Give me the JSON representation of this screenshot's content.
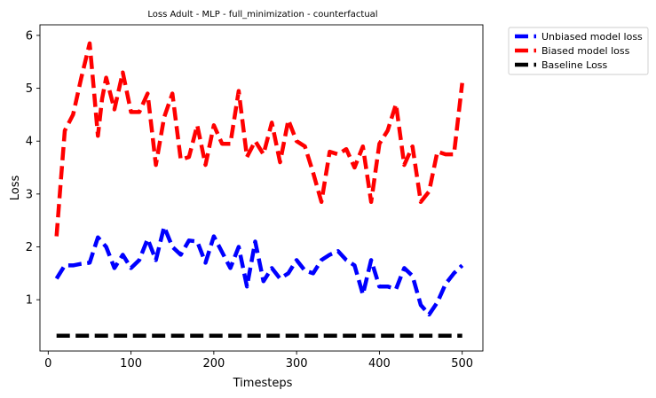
{
  "chart_data": {
    "type": "line",
    "title": "Loss Adult - MLP - full_minimization - counterfactual",
    "xlabel": "Timesteps",
    "ylabel": "Loss",
    "xlim": [
      -10,
      525
    ],
    "ylim": [
      0.03,
      6.2
    ],
    "xticks": [
      0,
      100,
      200,
      300,
      400,
      500
    ],
    "yticks": [
      1,
      2,
      3,
      4,
      5,
      6
    ],
    "grid": false,
    "legend_position": "outside-top-right",
    "series": [
      {
        "name": "Unbiased model loss",
        "color": "#0000ff",
        "x": [
          10,
          20,
          30,
          40,
          50,
          60,
          70,
          80,
          90,
          100,
          110,
          120,
          130,
          140,
          150,
          160,
          170,
          180,
          190,
          200,
          210,
          220,
          230,
          240,
          250,
          260,
          270,
          280,
          290,
          300,
          310,
          320,
          330,
          340,
          350,
          360,
          370,
          380,
          390,
          400,
          410,
          420,
          430,
          440,
          450,
          460,
          470,
          480,
          490,
          500
        ],
        "y": [
          1.4,
          1.65,
          1.65,
          1.68,
          1.7,
          2.18,
          2.0,
          1.6,
          1.85,
          1.6,
          1.75,
          2.15,
          1.75,
          2.38,
          2.0,
          1.85,
          2.12,
          2.1,
          1.7,
          2.2,
          1.9,
          1.6,
          2.0,
          1.25,
          2.1,
          1.35,
          1.6,
          1.4,
          1.5,
          1.75,
          1.55,
          1.5,
          1.75,
          1.85,
          1.92,
          1.75,
          1.65,
          1.1,
          1.75,
          1.25,
          1.25,
          1.2,
          1.6,
          1.45,
          0.9,
          0.72,
          0.95,
          1.3,
          1.5,
          1.65
        ]
      },
      {
        "name": "Biased model loss",
        "color": "#ff0000",
        "x": [
          10,
          15,
          20,
          30,
          40,
          50,
          55,
          60,
          65,
          70,
          80,
          90,
          100,
          110,
          120,
          130,
          140,
          150,
          160,
          170,
          180,
          190,
          200,
          210,
          220,
          230,
          240,
          250,
          260,
          270,
          280,
          290,
          300,
          310,
          320,
          330,
          340,
          350,
          360,
          370,
          380,
          390,
          400,
          410,
          420,
          430,
          440,
          450,
          460,
          470,
          480,
          490,
          500
        ],
        "y": [
          2.2,
          3.2,
          4.2,
          4.5,
          5.2,
          5.85,
          5.0,
          4.1,
          4.8,
          5.2,
          4.6,
          5.3,
          4.55,
          4.55,
          4.9,
          3.55,
          4.45,
          4.9,
          3.65,
          3.7,
          4.3,
          3.55,
          4.3,
          3.95,
          3.95,
          4.95,
          3.7,
          4.0,
          3.75,
          4.35,
          3.6,
          4.4,
          4.0,
          3.9,
          3.4,
          2.85,
          3.8,
          3.75,
          3.85,
          3.5,
          3.9,
          2.85,
          3.95,
          4.2,
          4.7,
          3.55,
          3.9,
          2.85,
          3.05,
          3.8,
          3.75,
          3.75,
          5.1
        ]
      },
      {
        "name": "Baseline Loss",
        "color": "#000000",
        "x": [
          10,
          500
        ],
        "y": [
          0.32,
          0.32
        ]
      }
    ]
  }
}
